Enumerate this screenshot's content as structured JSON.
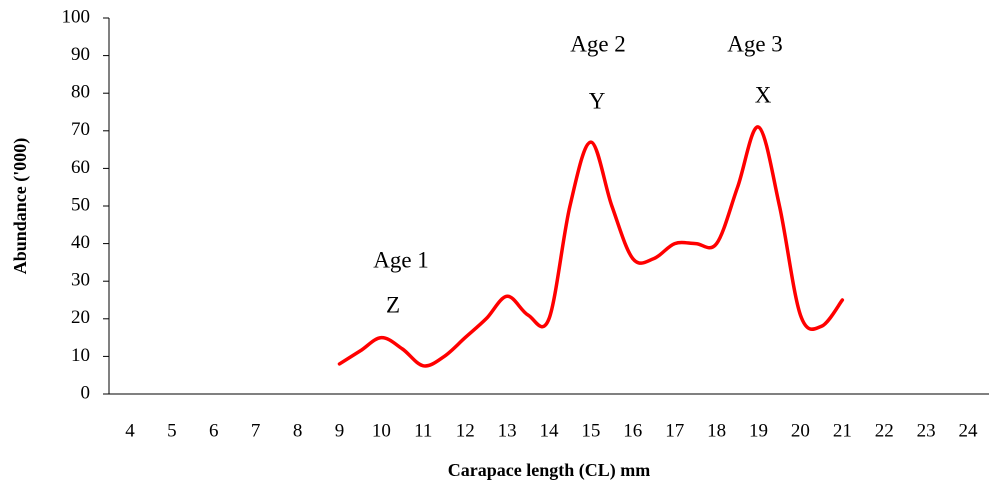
{
  "chart_data": {
    "type": "line",
    "x_label": "Carapace length (CL) mm",
    "y_label": "Abundance ('000)",
    "x": [
      9,
      9.5,
      10,
      10.5,
      11,
      11.5,
      12,
      12.5,
      13,
      13.5,
      14,
      14.5,
      15,
      15.5,
      16,
      16.5,
      17,
      17.5,
      18,
      18.5,
      19,
      19.5,
      20,
      20.5,
      21
    ],
    "series": [
      {
        "name": "Abundance",
        "color": "#ff0000",
        "values": [
          8,
          11.5,
          15,
          12,
          7.5,
          10,
          15,
          20,
          26,
          21,
          20,
          50,
          67,
          50,
          36,
          36,
          40,
          40,
          40,
          55,
          71,
          50,
          21,
          18,
          25
        ]
      }
    ],
    "xlim": [
      3.5,
      24.5
    ],
    "xticks": [
      4,
      5,
      6,
      7,
      8,
      9,
      10,
      11,
      12,
      13,
      14,
      15,
      16,
      17,
      18,
      19,
      20,
      21,
      22,
      23,
      24
    ],
    "ylim": [
      0,
      100
    ],
    "yticks": [
      0,
      10,
      20,
      30,
      40,
      50,
      60,
      70,
      80,
      90,
      100
    ],
    "annotations": [
      {
        "text": "Age 1"
      },
      {
        "text": "Z"
      },
      {
        "text": "Age 2"
      },
      {
        "text": "Y"
      },
      {
        "text": "Age 3"
      },
      {
        "text": "X"
      }
    ]
  }
}
